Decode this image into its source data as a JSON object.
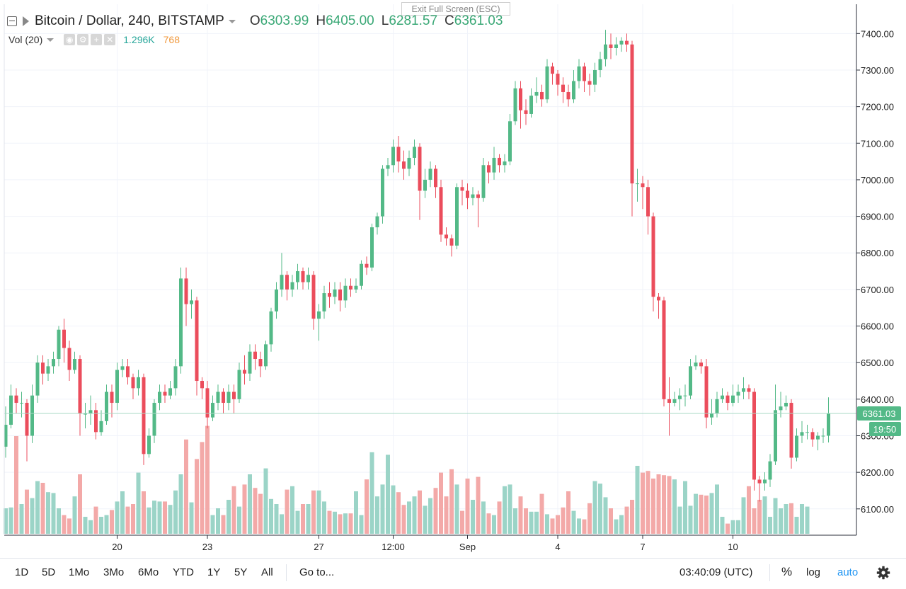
{
  "tooltip": "Exit Full Screen (ESC)",
  "legend": {
    "symbol": "Bitcoin / Dollar, 240, BITSTAMP",
    "o_label": "O",
    "o_value": "6303.99",
    "h_label": "H",
    "h_value": "6405.00",
    "l_label": "L",
    "l_value": "6281.57",
    "c_label": "C",
    "c_value": "6361.03"
  },
  "volume_legend": {
    "label": "Vol (20)",
    "value_1": "1.296K",
    "value_2": "768",
    "icons": [
      "eye-icon",
      "gear-icon",
      "plus-icon",
      "close-icon"
    ]
  },
  "price_axis": {
    "last_price_label": "6361.03",
    "countdown_label": "19:50"
  },
  "toolbar": {
    "ranges": [
      "1D",
      "5D",
      "1Mo",
      "3Mo",
      "6Mo",
      "YTD",
      "1Y",
      "5Y",
      "All"
    ],
    "goto": "Go to...",
    "time": "03:40:09 (UTC)",
    "percent": "%",
    "log": "log",
    "auto": "auto"
  },
  "colors": {
    "up": "#53b987",
    "down": "#eb4d5c",
    "up_volume": "#9bd4c7",
    "down_volume": "#f3a9a8",
    "accent": "#2196f3",
    "price_line": "#a8d8c6"
  },
  "chart_data": {
    "type": "candlestick",
    "y_ticks": [
      6100,
      6200,
      6300,
      6400,
      6500,
      6600,
      6700,
      6800,
      6900,
      7000,
      7100,
      7200,
      7300,
      7400
    ],
    "y_tick_labels": [
      "6100.00",
      "6200.00",
      "6300.00",
      "6400.00",
      "6500.00",
      "6600.00",
      "6700.00",
      "6800.00",
      "6900.00",
      "7000.00",
      "7100.00",
      "7200.00",
      "7300.00",
      "7400.00"
    ],
    "ylim": [
      6028,
      7480
    ],
    "x_labels": [
      {
        "index": 21,
        "label": "20"
      },
      {
        "index": 38,
        "label": "23"
      },
      {
        "index": 59,
        "label": "27"
      },
      {
        "index": 73,
        "label": "12:00"
      },
      {
        "index": 87,
        "label": "Sep"
      },
      {
        "index": 104,
        "label": "4"
      },
      {
        "index": 120,
        "label": "7"
      },
      {
        "index": 137,
        "label": "10"
      }
    ],
    "last_close": 6361.03,
    "candles": [
      [
        6270,
        6330,
        6240,
        6380
      ],
      [
        6330,
        6410,
        6320,
        6440
      ],
      [
        6410,
        6390,
        6360,
        6430
      ],
      [
        6390,
        6390,
        6350,
        6420
      ],
      [
        6390,
        6300,
        6230,
        6400
      ],
      [
        6300,
        6410,
        6280,
        6440
      ],
      [
        6410,
        6500,
        6390,
        6520
      ],
      [
        6500,
        6470,
        6440,
        6520
      ],
      [
        6470,
        6490,
        6450,
        6510
      ],
      [
        6490,
        6510,
        6470,
        6530
      ],
      [
        6510,
        6590,
        6490,
        6600
      ],
      [
        6590,
        6540,
        6500,
        6620
      ],
      [
        6540,
        6480,
        6450,
        6560
      ],
      [
        6480,
        6510,
        6470,
        6530
      ],
      [
        6510,
        6360,
        6300,
        6520
      ],
      [
        6360,
        6360,
        6320,
        6390
      ],
      [
        6360,
        6370,
        6330,
        6410
      ],
      [
        6370,
        6310,
        6290,
        6390
      ],
      [
        6310,
        6340,
        6300,
        6370
      ],
      [
        6340,
        6420,
        6330,
        6440
      ],
      [
        6420,
        6390,
        6350,
        6440
      ],
      [
        6390,
        6480,
        6370,
        6500
      ],
      [
        6480,
        6490,
        6460,
        6510
      ],
      [
        6490,
        6460,
        6440,
        6510
      ],
      [
        6460,
        6430,
        6400,
        6470
      ],
      [
        6430,
        6460,
        6410,
        6480
      ],
      [
        6460,
        6250,
        6220,
        6470
      ],
      [
        6250,
        6300,
        6240,
        6320
      ],
      [
        6300,
        6390,
        6280,
        6400
      ],
      [
        6390,
        6420,
        6370,
        6440
      ],
      [
        6420,
        6410,
        6390,
        6440
      ],
      [
        6410,
        6430,
        6400,
        6450
      ],
      [
        6430,
        6490,
        6410,
        6510
      ],
      [
        6490,
        6730,
        6470,
        6760
      ],
      [
        6730,
        6660,
        6600,
        6760
      ],
      [
        6660,
        6670,
        6620,
        6700
      ],
      [
        6670,
        6450,
        6410,
        6680
      ],
      [
        6450,
        6430,
        6400,
        6460
      ],
      [
        6430,
        6350,
        6320,
        6450
      ],
      [
        6350,
        6390,
        6340,
        6410
      ],
      [
        6390,
        6420,
        6370,
        6440
      ],
      [
        6420,
        6390,
        6360,
        6430
      ],
      [
        6390,
        6420,
        6370,
        6440
      ],
      [
        6420,
        6400,
        6360,
        6440
      ],
      [
        6400,
        6480,
        6390,
        6500
      ],
      [
        6480,
        6470,
        6440,
        6520
      ],
      [
        6470,
        6530,
        6450,
        6550
      ],
      [
        6530,
        6510,
        6480,
        6550
      ],
      [
        6510,
        6490,
        6460,
        6530
      ],
      [
        6490,
        6550,
        6480,
        6560
      ],
      [
        6550,
        6640,
        6530,
        6650
      ],
      [
        6640,
        6700,
        6620,
        6720
      ],
      [
        6700,
        6740,
        6680,
        6800
      ],
      [
        6740,
        6700,
        6670,
        6750
      ],
      [
        6700,
        6720,
        6680,
        6740
      ],
      [
        6720,
        6750,
        6700,
        6770
      ],
      [
        6750,
        6720,
        6700,
        6760
      ],
      [
        6720,
        6740,
        6700,
        6760
      ],
      [
        6740,
        6620,
        6590,
        6750
      ],
      [
        6620,
        6640,
        6560,
        6660
      ],
      [
        6640,
        6690,
        6620,
        6710
      ],
      [
        6690,
        6680,
        6650,
        6720
      ],
      [
        6680,
        6700,
        6660,
        6720
      ],
      [
        6700,
        6670,
        6640,
        6720
      ],
      [
        6670,
        6710,
        6650,
        6730
      ],
      [
        6710,
        6700,
        6680,
        6730
      ],
      [
        6700,
        6710,
        6690,
        6730
      ],
      [
        6710,
        6770,
        6700,
        6780
      ],
      [
        6770,
        6760,
        6740,
        6790
      ],
      [
        6760,
        6870,
        6750,
        6880
      ],
      [
        6870,
        6900,
        6850,
        6910
      ],
      [
        6900,
        7030,
        6880,
        7040
      ],
      [
        7030,
        7040,
        7010,
        7060
      ],
      [
        7040,
        7090,
        7020,
        7110
      ],
      [
        7090,
        7050,
        7020,
        7120
      ],
      [
        7050,
        7030,
        7000,
        7080
      ],
      [
        7030,
        7060,
        7010,
        7080
      ],
      [
        7060,
        7090,
        7040,
        7110
      ],
      [
        7090,
        6970,
        6890,
        7100
      ],
      [
        6970,
        7000,
        6950,
        7030
      ],
      [
        7000,
        7030,
        6980,
        7050
      ],
      [
        7030,
        6980,
        6950,
        7040
      ],
      [
        6980,
        6850,
        6830,
        7000
      ],
      [
        6850,
        6840,
        6820,
        6870
      ],
      [
        6840,
        6820,
        6790,
        6850
      ],
      [
        6820,
        6980,
        6810,
        6990
      ],
      [
        6980,
        6970,
        6930,
        7000
      ],
      [
        6970,
        6950,
        6920,
        6990
      ],
      [
        6950,
        6960,
        6930,
        6980
      ],
      [
        6960,
        6950,
        6870,
        6970
      ],
      [
        6950,
        7040,
        6940,
        7060
      ],
      [
        7040,
        7020,
        6990,
        7050
      ],
      [
        7020,
        7060,
        7000,
        7090
      ],
      [
        7060,
        7040,
        7020,
        7070
      ],
      [
        7040,
        7050,
        7020,
        7070
      ],
      [
        7050,
        7160,
        7040,
        7180
      ],
      [
        7160,
        7250,
        7150,
        7270
      ],
      [
        7250,
        7190,
        7140,
        7270
      ],
      [
        7190,
        7180,
        7150,
        7220
      ],
      [
        7180,
        7230,
        7170,
        7250
      ],
      [
        7230,
        7240,
        7210,
        7280
      ],
      [
        7240,
        7220,
        7200,
        7260
      ],
      [
        7220,
        7310,
        7210,
        7330
      ],
      [
        7310,
        7290,
        7260,
        7320
      ],
      [
        7290,
        7260,
        7230,
        7300
      ],
      [
        7260,
        7240,
        7210,
        7280
      ],
      [
        7240,
        7220,
        7200,
        7260
      ],
      [
        7220,
        7270,
        7210,
        7300
      ],
      [
        7270,
        7310,
        7250,
        7330
      ],
      [
        7310,
        7270,
        7240,
        7320
      ],
      [
        7270,
        7260,
        7230,
        7290
      ],
      [
        7260,
        7300,
        7240,
        7320
      ],
      [
        7300,
        7330,
        7280,
        7350
      ],
      [
        7330,
        7370,
        7310,
        7410
      ],
      [
        7370,
        7360,
        7330,
        7400
      ],
      [
        7360,
        7370,
        7340,
        7390
      ],
      [
        7370,
        7380,
        7350,
        7390
      ],
      [
        7380,
        7370,
        7350,
        7400
      ],
      [
        7370,
        6990,
        6900,
        7380
      ],
      [
        6990,
        6990,
        6940,
        7030
      ],
      [
        6990,
        6980,
        6920,
        7010
      ],
      [
        6980,
        6900,
        6850,
        7000
      ],
      [
        6900,
        6680,
        6640,
        6910
      ],
      [
        6680,
        6670,
        6620,
        6690
      ],
      [
        6670,
        6400,
        6380,
        6680
      ],
      [
        6400,
        6390,
        6300,
        6460
      ],
      [
        6390,
        6400,
        6380,
        6420
      ],
      [
        6400,
        6410,
        6370,
        6430
      ],
      [
        6410,
        6410,
        6380,
        6440
      ],
      [
        6410,
        6490,
        6400,
        6510
      ],
      [
        6490,
        6500,
        6480,
        6520
      ],
      [
        6500,
        6490,
        6470,
        6510
      ],
      [
        6490,
        6350,
        6320,
        6510
      ],
      [
        6350,
        6360,
        6330,
        6400
      ],
      [
        6360,
        6400,
        6350,
        6420
      ],
      [
        6400,
        6410,
        6390,
        6430
      ],
      [
        6410,
        6390,
        6370,
        6420
      ],
      [
        6390,
        6410,
        6380,
        6440
      ],
      [
        6410,
        6420,
        6390,
        6440
      ],
      [
        6420,
        6430,
        6400,
        6460
      ],
      [
        6430,
        6420,
        6400,
        6440
      ],
      [
        6420,
        6180,
        6150,
        6430
      ],
      [
        6180,
        6170,
        6120,
        6190
      ],
      [
        6170,
        6180,
        6150,
        6200
      ],
      [
        6180,
        6230,
        6160,
        6250
      ],
      [
        6230,
        6370,
        6220,
        6440
      ],
      [
        6370,
        6380,
        6350,
        6420
      ],
      [
        6380,
        6390,
        6370,
        6410
      ],
      [
        6390,
        6240,
        6210,
        6400
      ],
      [
        6240,
        6300,
        6230,
        6320
      ],
      [
        6300,
        6310,
        6280,
        6340
      ],
      [
        6310,
        6310,
        6290,
        6330
      ],
      [
        6310,
        6290,
        6270,
        6320
      ],
      [
        6290,
        6300,
        6260,
        6310
      ],
      [
        6300,
        6300,
        6280,
        6320
      ],
      [
        6300,
        6361.03,
        6281.57,
        6405
      ]
    ],
    "volume_ylim": [
      0,
      1500
    ],
    "volumes": [
      300,
      310,
      1150,
      350,
      520,
      420,
      620,
      600,
      490,
      480,
      300,
      220,
      180,
      440,
      700,
      200,
      160,
      320,
      200,
      220,
      280,
      380,
      500,
      320,
      350,
      720,
      500,
      310,
      390,
      380,
      380,
      340,
      510,
      700,
      1110,
      370,
      880,
      1080,
      1270,
      220,
      300,
      220,
      400,
      560,
      320,
      580,
      700,
      540,
      470,
      770,
      410,
      350,
      230,
      520,
      560,
      270,
      350,
      350,
      510,
      510,
      380,
      270,
      260,
      230,
      240,
      240,
      500,
      220,
      640,
      960,
      440,
      580,
      930,
      570,
      490,
      340,
      380,
      440,
      510,
      330,
      420,
      540,
      720,
      440,
      760,
      580,
      270,
      650,
      400,
      670,
      380,
      240,
      220,
      380,
      560,
      580,
      300,
      440,
      300,
      260,
      260,
      470,
      230,
      180,
      220,
      310,
      500,
      270,
      180,
      170,
      360,
      620,
      590,
      430,
      300,
      170,
      220,
      320,
      400,
      800,
      720,
      740,
      650,
      700,
      690,
      680,
      640,
      320,
      620,
      330,
      470,
      460,
      450,
      480,
      580,
      200,
      120,
      160,
      160,
      430,
      560,
      300,
      400,
      440,
      200,
      420,
      300,
      350,
      360,
      200,
      350,
      320
    ]
  }
}
